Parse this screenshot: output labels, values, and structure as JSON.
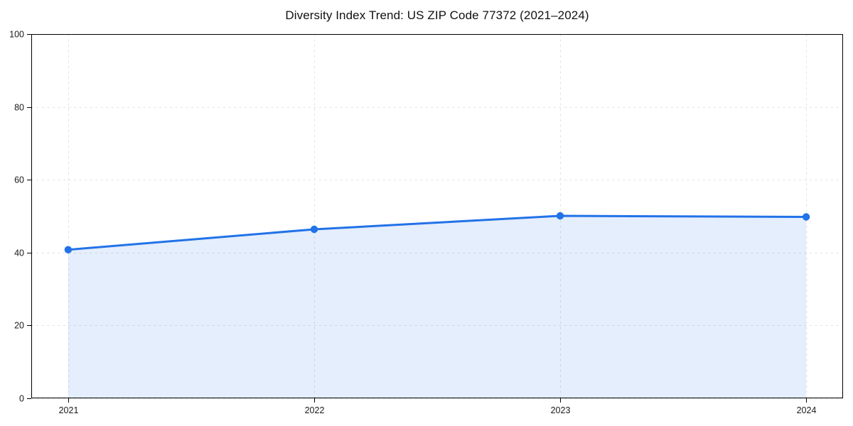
{
  "chart_data": {
    "type": "area",
    "title": "Diversity Index Trend: US ZIP Code 77372 (2021–2024)",
    "categories": [
      "2021",
      "2022",
      "2023",
      "2024"
    ],
    "values": [
      40.8,
      46.4,
      50.1,
      49.8
    ],
    "xlabel": "",
    "ylabel": "",
    "ylim": [
      0,
      100
    ],
    "yticks": [
      0,
      20,
      40,
      60,
      80,
      100
    ],
    "grid": true,
    "grid_style": "dashed",
    "legend": "none",
    "marker": "circle",
    "colors": {
      "line": "#2272e8",
      "marker": "#2272e8",
      "area_fill": "rgba(34,114,232,0.12)",
      "grid": "#e0e0e0",
      "spine": "#000000",
      "tick_text": "#1a1a1a",
      "title_text": "#111111",
      "background": "#ffffff"
    }
  }
}
